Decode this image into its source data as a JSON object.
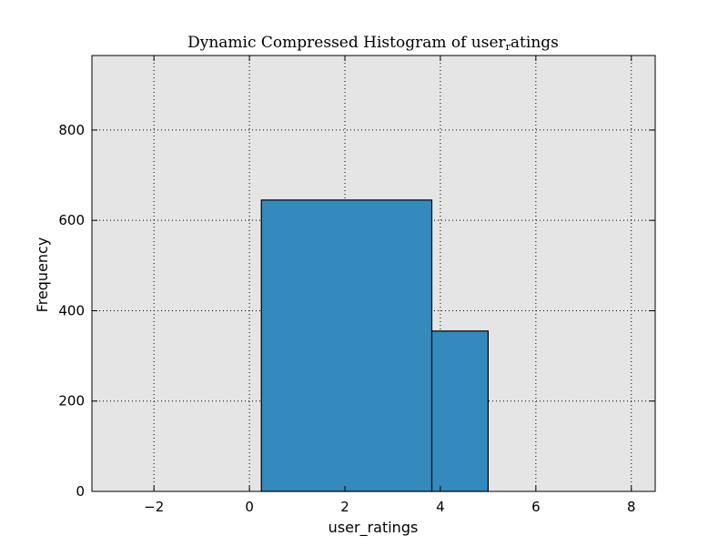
{
  "chart_data": {
    "type": "bar",
    "title_main": "Dynamic Compressed Histogram of user",
    "title_sub": "r",
    "title_tail": "atings",
    "xlabel": "user_ratings",
    "ylabel": "Frequency",
    "xlim": [
      -3.3,
      8.5
    ],
    "ylim": [
      0,
      965
    ],
    "xticks": [
      -2,
      0,
      2,
      4,
      6,
      8
    ],
    "xtick_labels": [
      "−2",
      "0",
      "2",
      "4",
      "6",
      "8"
    ],
    "yticks": [
      0,
      200,
      400,
      600,
      800
    ],
    "ytick_labels": [
      "0",
      "200",
      "400",
      "600",
      "800"
    ],
    "grid": true,
    "bins": [
      {
        "x0": 0.25,
        "x1": 3.82,
        "value": 645
      },
      {
        "x0": 3.82,
        "x1": 5.0,
        "value": 355
      }
    ],
    "colors": {
      "bar_fill": "#348abd",
      "bar_edge": "#000000",
      "plot_background": "#e5e5e5",
      "grid": "#000000"
    }
  }
}
